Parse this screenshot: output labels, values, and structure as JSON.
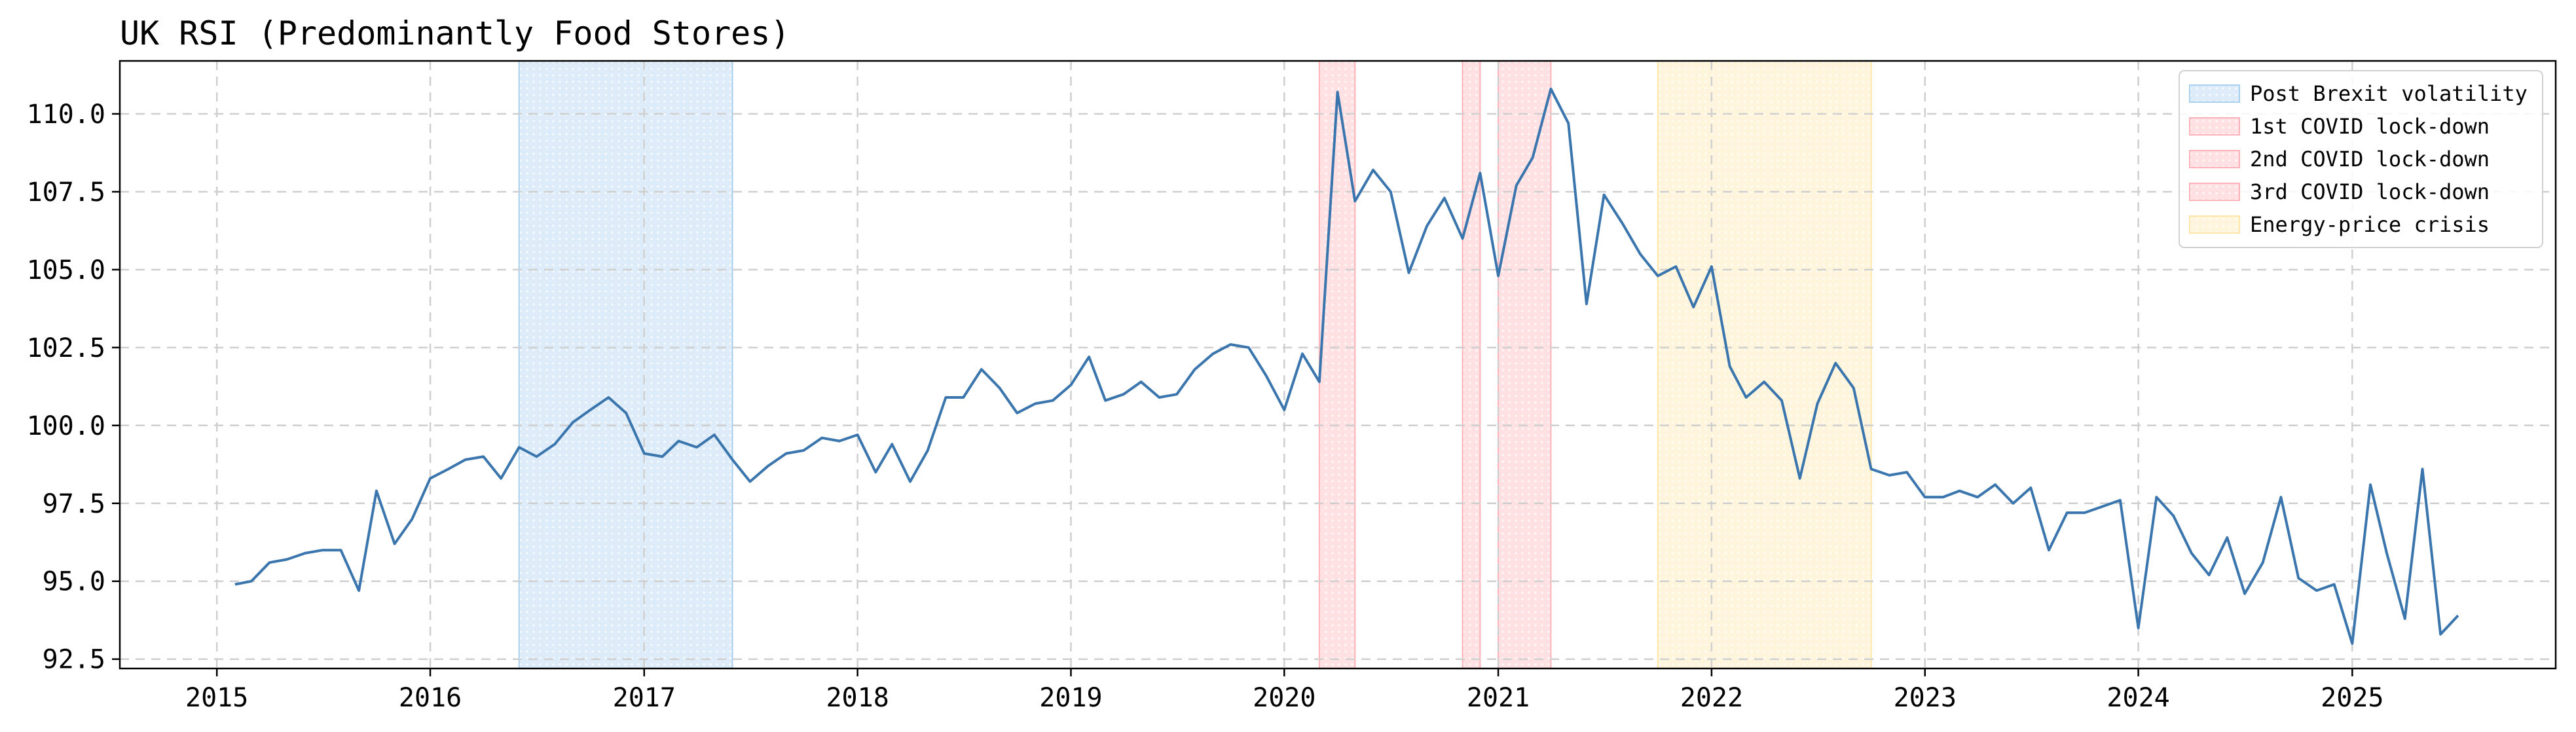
{
  "chart_data": {
    "type": "line",
    "title": "UK RSI (Predominantly Food Stores)",
    "xlabel": "",
    "ylabel": "",
    "xlim": [
      "2014-07-19",
      "2025-12-15"
    ],
    "ylim": [
      92.2,
      111.7
    ],
    "grid": true,
    "legend_placement": "top-right",
    "x_ticks": [
      "2015",
      "2016",
      "2017",
      "2018",
      "2019",
      "2020",
      "2021",
      "2022",
      "2023",
      "2024",
      "2025"
    ],
    "y_ticks": [
      "92.5",
      "95.0",
      "97.5",
      "100.0",
      "102.5",
      "105.0",
      "107.5",
      "110.0"
    ],
    "colors": {
      "line": "#3a76ad",
      "brexit": "#a9d0ee",
      "covid": "#ffb3b8",
      "energy": "#ffe6a8"
    },
    "shaded_periods": [
      {
        "label": "Post Brexit volatility",
        "start": "2016-06",
        "end": "2017-06",
        "color": "#a9d0ee"
      },
      {
        "label": "1st COVID lock-down",
        "start": "2020-03",
        "end": "2020-05",
        "color": "#ffb3b8"
      },
      {
        "label": "2nd COVID lock-down",
        "start": "2020-11",
        "end": "2020-12",
        "color": "#ffb3b8"
      },
      {
        "label": "3rd COVID lock-down",
        "start": "2021-01",
        "end": "2021-04",
        "color": "#ffb3b8"
      },
      {
        "label": "Energy-price crisis",
        "start": "2021-10",
        "end": "2022-10",
        "color": "#ffe6a8"
      }
    ],
    "legend": [
      "Post Brexit volatility",
      "1st COVID lock-down",
      "2nd COVID lock-down",
      "3rd COVID lock-down",
      "Energy-price crisis"
    ],
    "x": [
      "2015-02",
      "2015-03",
      "2015-04",
      "2015-05",
      "2015-06",
      "2015-07",
      "2015-08",
      "2015-09",
      "2015-10",
      "2015-11",
      "2015-12",
      "2016-01",
      "2016-02",
      "2016-03",
      "2016-04",
      "2016-05",
      "2016-06",
      "2016-07",
      "2016-08",
      "2016-09",
      "2016-10",
      "2016-11",
      "2016-12",
      "2017-01",
      "2017-02",
      "2017-03",
      "2017-04",
      "2017-05",
      "2017-06",
      "2017-07",
      "2017-08",
      "2017-09",
      "2017-10",
      "2017-11",
      "2017-12",
      "2018-01",
      "2018-02",
      "2018-03",
      "2018-04",
      "2018-05",
      "2018-06",
      "2018-07",
      "2018-08",
      "2018-09",
      "2018-10",
      "2018-11",
      "2018-12",
      "2019-01",
      "2019-02",
      "2019-03",
      "2019-04",
      "2019-05",
      "2019-06",
      "2019-07",
      "2019-08",
      "2019-09",
      "2019-10",
      "2019-11",
      "2019-12",
      "2020-01",
      "2020-02",
      "2020-03",
      "2020-04",
      "2020-05",
      "2020-06",
      "2020-07",
      "2020-08",
      "2020-09",
      "2020-10",
      "2020-11",
      "2020-12",
      "2021-01",
      "2021-02",
      "2021-03",
      "2021-04",
      "2021-05",
      "2021-06",
      "2021-07",
      "2021-08",
      "2021-09",
      "2021-10",
      "2021-11",
      "2021-12",
      "2022-01",
      "2022-02",
      "2022-03",
      "2022-04",
      "2022-05",
      "2022-06",
      "2022-07",
      "2022-08",
      "2022-09",
      "2022-10",
      "2022-11",
      "2022-12",
      "2023-01",
      "2023-02",
      "2023-03",
      "2023-04",
      "2023-05",
      "2023-06",
      "2023-07",
      "2023-08",
      "2023-09",
      "2023-10",
      "2023-11",
      "2023-12",
      "2024-01",
      "2024-02",
      "2024-03",
      "2024-04",
      "2024-05",
      "2024-06",
      "2024-07",
      "2024-08",
      "2024-09",
      "2024-10",
      "2024-11",
      "2024-12",
      "2025-01",
      "2025-02",
      "2025-03",
      "2025-04",
      "2025-05",
      "2025-06",
      "2025-07"
    ],
    "values": [
      94.9,
      95.0,
      95.6,
      95.7,
      95.9,
      96.0,
      96.0,
      94.7,
      97.9,
      96.2,
      97.0,
      98.3,
      98.6,
      98.9,
      99.0,
      98.3,
      99.3,
      99.0,
      99.4,
      100.1,
      100.5,
      100.9,
      100.4,
      99.1,
      99.0,
      99.5,
      99.3,
      99.7,
      98.9,
      98.2,
      98.7,
      99.1,
      99.2,
      99.6,
      99.5,
      99.7,
      98.5,
      99.4,
      98.2,
      99.2,
      100.9,
      100.9,
      101.8,
      101.2,
      100.4,
      100.7,
      100.8,
      101.3,
      102.2,
      100.8,
      101.0,
      101.4,
      100.9,
      101.0,
      101.8,
      102.3,
      102.6,
      102.5,
      101.6,
      100.5,
      102.3,
      101.4,
      110.7,
      107.2,
      108.2,
      107.5,
      104.9,
      106.4,
      107.3,
      106.0,
      108.1,
      104.8,
      107.7,
      108.6,
      110.8,
      109.7,
      103.9,
      107.4,
      106.5,
      105.5,
      104.8,
      105.1,
      103.8,
      105.1,
      101.9,
      100.9,
      101.4,
      100.8,
      98.3,
      100.7,
      102.0,
      101.2,
      98.6,
      98.4,
      98.5,
      97.7,
      97.7,
      97.9,
      97.7,
      98.1,
      97.5,
      98.0,
      96.0,
      97.2,
      97.2,
      97.4,
      97.6,
      93.5,
      97.7,
      97.1,
      95.9,
      95.2,
      96.4,
      94.6,
      95.6,
      97.7,
      95.1,
      94.7,
      94.9,
      93.0,
      98.1,
      95.9,
      93.8,
      98.6,
      93.3,
      93.9
    ]
  }
}
